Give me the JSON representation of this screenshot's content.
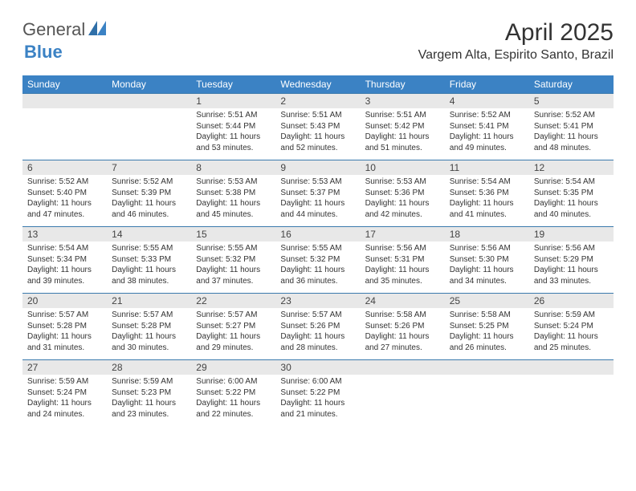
{
  "logo": {
    "text1": "General",
    "text2": "Blue"
  },
  "title": "April 2025",
  "location": "Vargem Alta, Espirito Santo, Brazil",
  "colors": {
    "header_bg": "#3b82c4",
    "header_text": "#ffffff",
    "daynum_bg": "#e8e8e8",
    "row_border": "#3b7aad",
    "body_text": "#333333",
    "page_bg": "#ffffff"
  },
  "column_headers": [
    "Sunday",
    "Monday",
    "Tuesday",
    "Wednesday",
    "Thursday",
    "Friday",
    "Saturday"
  ],
  "weeks": [
    [
      {
        "num": "",
        "lines": []
      },
      {
        "num": "",
        "lines": []
      },
      {
        "num": "1",
        "lines": [
          "Sunrise: 5:51 AM",
          "Sunset: 5:44 PM",
          "Daylight: 11 hours and 53 minutes."
        ]
      },
      {
        "num": "2",
        "lines": [
          "Sunrise: 5:51 AM",
          "Sunset: 5:43 PM",
          "Daylight: 11 hours and 52 minutes."
        ]
      },
      {
        "num": "3",
        "lines": [
          "Sunrise: 5:51 AM",
          "Sunset: 5:42 PM",
          "Daylight: 11 hours and 51 minutes."
        ]
      },
      {
        "num": "4",
        "lines": [
          "Sunrise: 5:52 AM",
          "Sunset: 5:41 PM",
          "Daylight: 11 hours and 49 minutes."
        ]
      },
      {
        "num": "5",
        "lines": [
          "Sunrise: 5:52 AM",
          "Sunset: 5:41 PM",
          "Daylight: 11 hours and 48 minutes."
        ]
      }
    ],
    [
      {
        "num": "6",
        "lines": [
          "Sunrise: 5:52 AM",
          "Sunset: 5:40 PM",
          "Daylight: 11 hours and 47 minutes."
        ]
      },
      {
        "num": "7",
        "lines": [
          "Sunrise: 5:52 AM",
          "Sunset: 5:39 PM",
          "Daylight: 11 hours and 46 minutes."
        ]
      },
      {
        "num": "8",
        "lines": [
          "Sunrise: 5:53 AM",
          "Sunset: 5:38 PM",
          "Daylight: 11 hours and 45 minutes."
        ]
      },
      {
        "num": "9",
        "lines": [
          "Sunrise: 5:53 AM",
          "Sunset: 5:37 PM",
          "Daylight: 11 hours and 44 minutes."
        ]
      },
      {
        "num": "10",
        "lines": [
          "Sunrise: 5:53 AM",
          "Sunset: 5:36 PM",
          "Daylight: 11 hours and 42 minutes."
        ]
      },
      {
        "num": "11",
        "lines": [
          "Sunrise: 5:54 AM",
          "Sunset: 5:36 PM",
          "Daylight: 11 hours and 41 minutes."
        ]
      },
      {
        "num": "12",
        "lines": [
          "Sunrise: 5:54 AM",
          "Sunset: 5:35 PM",
          "Daylight: 11 hours and 40 minutes."
        ]
      }
    ],
    [
      {
        "num": "13",
        "lines": [
          "Sunrise: 5:54 AM",
          "Sunset: 5:34 PM",
          "Daylight: 11 hours and 39 minutes."
        ]
      },
      {
        "num": "14",
        "lines": [
          "Sunrise: 5:55 AM",
          "Sunset: 5:33 PM",
          "Daylight: 11 hours and 38 minutes."
        ]
      },
      {
        "num": "15",
        "lines": [
          "Sunrise: 5:55 AM",
          "Sunset: 5:32 PM",
          "Daylight: 11 hours and 37 minutes."
        ]
      },
      {
        "num": "16",
        "lines": [
          "Sunrise: 5:55 AM",
          "Sunset: 5:32 PM",
          "Daylight: 11 hours and 36 minutes."
        ]
      },
      {
        "num": "17",
        "lines": [
          "Sunrise: 5:56 AM",
          "Sunset: 5:31 PM",
          "Daylight: 11 hours and 35 minutes."
        ]
      },
      {
        "num": "18",
        "lines": [
          "Sunrise: 5:56 AM",
          "Sunset: 5:30 PM",
          "Daylight: 11 hours and 34 minutes."
        ]
      },
      {
        "num": "19",
        "lines": [
          "Sunrise: 5:56 AM",
          "Sunset: 5:29 PM",
          "Daylight: 11 hours and 33 minutes."
        ]
      }
    ],
    [
      {
        "num": "20",
        "lines": [
          "Sunrise: 5:57 AM",
          "Sunset: 5:28 PM",
          "Daylight: 11 hours and 31 minutes."
        ]
      },
      {
        "num": "21",
        "lines": [
          "Sunrise: 5:57 AM",
          "Sunset: 5:28 PM",
          "Daylight: 11 hours and 30 minutes."
        ]
      },
      {
        "num": "22",
        "lines": [
          "Sunrise: 5:57 AM",
          "Sunset: 5:27 PM",
          "Daylight: 11 hours and 29 minutes."
        ]
      },
      {
        "num": "23",
        "lines": [
          "Sunrise: 5:57 AM",
          "Sunset: 5:26 PM",
          "Daylight: 11 hours and 28 minutes."
        ]
      },
      {
        "num": "24",
        "lines": [
          "Sunrise: 5:58 AM",
          "Sunset: 5:26 PM",
          "Daylight: 11 hours and 27 minutes."
        ]
      },
      {
        "num": "25",
        "lines": [
          "Sunrise: 5:58 AM",
          "Sunset: 5:25 PM",
          "Daylight: 11 hours and 26 minutes."
        ]
      },
      {
        "num": "26",
        "lines": [
          "Sunrise: 5:59 AM",
          "Sunset: 5:24 PM",
          "Daylight: 11 hours and 25 minutes."
        ]
      }
    ],
    [
      {
        "num": "27",
        "lines": [
          "Sunrise: 5:59 AM",
          "Sunset: 5:24 PM",
          "Daylight: 11 hours and 24 minutes."
        ]
      },
      {
        "num": "28",
        "lines": [
          "Sunrise: 5:59 AM",
          "Sunset: 5:23 PM",
          "Daylight: 11 hours and 23 minutes."
        ]
      },
      {
        "num": "29",
        "lines": [
          "Sunrise: 6:00 AM",
          "Sunset: 5:22 PM",
          "Daylight: 11 hours and 22 minutes."
        ]
      },
      {
        "num": "30",
        "lines": [
          "Sunrise: 6:00 AM",
          "Sunset: 5:22 PM",
          "Daylight: 11 hours and 21 minutes."
        ]
      },
      {
        "num": "",
        "lines": []
      },
      {
        "num": "",
        "lines": []
      },
      {
        "num": "",
        "lines": []
      }
    ]
  ]
}
